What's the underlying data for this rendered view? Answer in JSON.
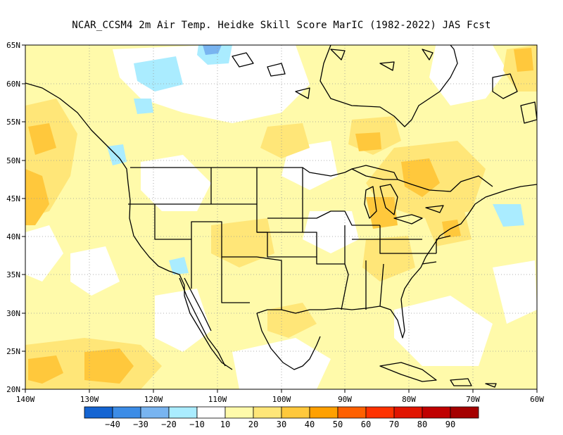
{
  "map": {
    "title": "NCAR_CCSM4  2m Air Temp. Heidke Skill Score MarIC (1982-2022) JAS Fcst",
    "lon_ticks": [
      "140W",
      "130W",
      "120W",
      "110W",
      "100W",
      "90W",
      "80W",
      "70W",
      "60W"
    ],
    "lat_ticks": [
      "65N",
      "60N",
      "55N",
      "50N",
      "45N",
      "40N",
      "35N",
      "30N",
      "25N",
      "20N"
    ],
    "extent": {
      "lon_west": 140,
      "lon_east": 60,
      "lat_south": 20,
      "lat_north": 65
    },
    "gridlines": "dotted"
  },
  "colorbar": {
    "labels": [
      "−40",
      "−30",
      "−20",
      "−10",
      "10",
      "20",
      "30",
      "40",
      "50",
      "60",
      "70",
      "80",
      "90"
    ],
    "colors": [
      "#1464d2",
      "#3c8ce6",
      "#78b4f0",
      "#aaecff",
      "#ffffff",
      "#fffaaa",
      "#ffe678",
      "#ffc83c",
      "#ffa000",
      "#ff6000",
      "#ff3200",
      "#e11400",
      "#c00000",
      "#a50000"
    ]
  }
}
